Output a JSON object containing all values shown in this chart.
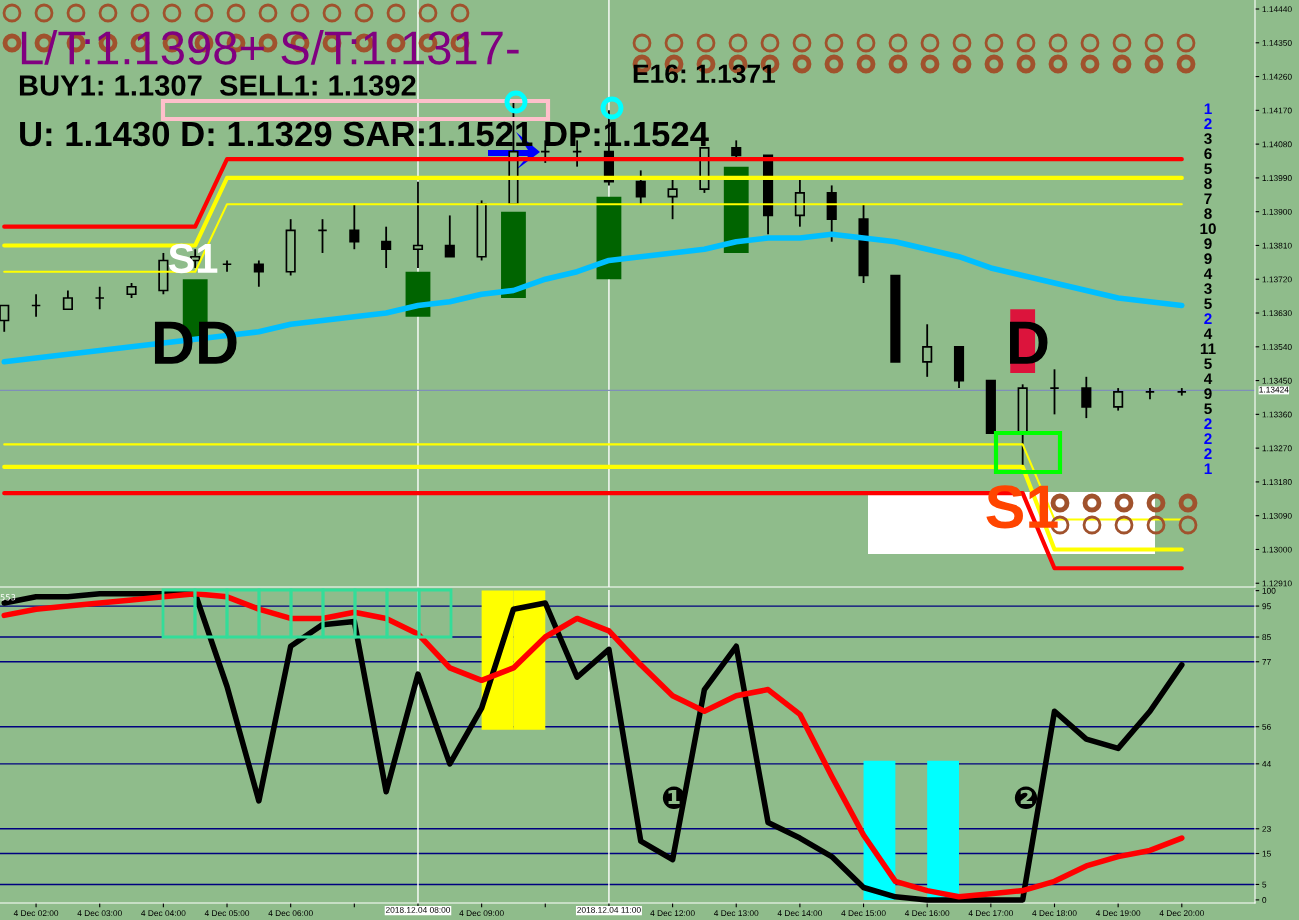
{
  "chart_data": [
    {
      "type": "candlestick",
      "color": "#000000",
      "x": [
        "2018-12-04T01:30",
        "2018-12-04T02:00",
        "2018-12-04T02:30",
        "2018-12-04T03:00",
        "2018-12-04T03:30",
        "2018-12-04T04:00",
        "2018-12-04T04:30",
        "2018-12-04T05:00",
        "2018-12-04T05:30",
        "2018-12-04T06:00",
        "2018-12-04T06:30",
        "2018-12-04T07:00",
        "2018-12-04T07:30",
        "2018-12-04T08:00",
        "2018-12-04T08:30",
        "2018-12-04T09:00",
        "2018-12-04T09:30",
        "2018-12-04T10:00",
        "2018-12-04T10:30",
        "2018-12-04T11:00",
        "2018-12-04T11:30",
        "2018-12-04T12:00",
        "2018-12-04T12:30",
        "2018-12-04T13:00",
        "2018-12-04T13:30",
        "2018-12-04T14:00",
        "2018-12-04T14:30",
        "2018-12-04T15:00",
        "2018-12-04T15:30",
        "2018-12-04T16:00",
        "2018-12-04T16:30",
        "2018-12-04T17:00",
        "2018-12-04T17:30",
        "2018-12-04T18:00",
        "2018-12-04T18:30",
        "2018-12-04T19:00",
        "2018-12-04T19:30",
        "2018-12-04T20:00"
      ],
      "ohlc": [
        [
          1.1361,
          1.1365,
          1.1358,
          1.1365
        ],
        [
          1.1365,
          1.1368,
          1.1362,
          1.1365
        ],
        [
          1.1364,
          1.1369,
          1.1364,
          1.1367
        ],
        [
          1.1367,
          1.137,
          1.1364,
          1.1367
        ],
        [
          1.1368,
          1.1371,
          1.1367,
          1.137
        ],
        [
          1.1369,
          1.1379,
          1.1368,
          1.1377
        ],
        [
          1.1377,
          1.138,
          1.1375,
          1.1378
        ],
        [
          1.1376,
          1.1377,
          1.1374,
          1.1376
        ],
        [
          1.1376,
          1.1377,
          1.137,
          1.1374
        ],
        [
          1.1374,
          1.1388,
          1.1373,
          1.1385
        ],
        [
          1.1385,
          1.1388,
          1.1379,
          1.1385
        ],
        [
          1.1385,
          1.1392,
          1.138,
          1.1382
        ],
        [
          1.1382,
          1.1386,
          1.1375,
          1.138
        ],
        [
          1.138,
          1.1398,
          1.1375,
          1.1381
        ],
        [
          1.1381,
          1.1389,
          1.1378,
          1.1378
        ],
        [
          1.1378,
          1.1393,
          1.1377,
          1.1392
        ],
        [
          1.1392,
          1.1419,
          1.1392,
          1.1406
        ],
        [
          1.1406,
          1.1409,
          1.1403,
          1.1406
        ],
        [
          1.1406,
          1.1409,
          1.1402,
          1.1406
        ],
        [
          1.1406,
          1.1417,
          1.1397,
          1.1398
        ],
        [
          1.1398,
          1.1401,
          1.1392,
          1.1394
        ],
        [
          1.1394,
          1.1399,
          1.1388,
          1.1396
        ],
        [
          1.1396,
          1.1407,
          1.1395,
          1.1407
        ],
        [
          1.1407,
          1.1409,
          1.1404,
          1.1405
        ],
        [
          1.1405,
          1.1405,
          1.1384,
          1.1389
        ],
        [
          1.1389,
          1.1399,
          1.1386,
          1.1395
        ],
        [
          1.1395,
          1.1397,
          1.1382,
          1.1388
        ],
        [
          1.1388,
          1.1392,
          1.1371,
          1.1373
        ],
        [
          1.1373,
          1.1373,
          1.135,
          1.135
        ],
        [
          1.135,
          1.136,
          1.1346,
          1.1354
        ],
        [
          1.1354,
          1.1354,
          1.1343,
          1.1345
        ],
        [
          1.1345,
          1.1345,
          1.1331,
          1.1331
        ],
        [
          1.1331,
          1.1344,
          1.1322,
          1.1343
        ],
        [
          1.1343,
          1.1348,
          1.1336,
          1.1343
        ],
        [
          1.1343,
          1.1346,
          1.1335,
          1.1338
        ],
        [
          1.1338,
          1.1343,
          1.1337,
          1.1342
        ],
        [
          1.1342,
          1.1343,
          1.134,
          1.1342
        ],
        [
          1.1342,
          1.1343,
          1.1341,
          1.1342
        ]
      ],
      "series": [
        {
          "type": "line",
          "color": "#ff0000",
          "values": [
            1.1386,
            1.1386,
            1.1386,
            1.1386,
            1.1386,
            1.1386,
            1.1386,
            1.1404,
            1.1404,
            1.1404,
            1.1404,
            1.1404,
            1.1404,
            1.1404,
            1.1404,
            1.1404,
            1.1404,
            1.1404,
            1.1404,
            1.1404,
            1.1404,
            1.1404,
            1.1404,
            1.1404,
            1.1404,
            1.1404,
            1.1404,
            1.1404,
            1.1404,
            1.1404,
            1.1404,
            1.1404,
            1.1404,
            1.1404,
            1.1404,
            1.1404,
            1.1404,
            1.1404
          ]
        },
        {
          "type": "line",
          "color": "#ffff00",
          "values": [
            1.1381,
            1.1381,
            1.1381,
            1.1381,
            1.1381,
            1.1381,
            1.1381,
            1.1399,
            1.1399,
            1.1399,
            1.1399,
            1.1399,
            1.1399,
            1.1399,
            1.1399,
            1.1399,
            1.1399,
            1.1399,
            1.1399,
            1.1399,
            1.1399,
            1.1399,
            1.1399,
            1.1399,
            1.1399,
            1.1399,
            1.1399,
            1.1399,
            1.1399,
            1.1399,
            1.1399,
            1.1399,
            1.1399,
            1.1399,
            1.1399,
            1.1399,
            1.1399,
            1.1399
          ]
        },
        {
          "type": "line",
          "color": "#ffff00",
          "values": [
            1.1374,
            1.1374,
            1.1374,
            1.1374,
            1.1374,
            1.1374,
            1.1374,
            1.1392,
            1.1392,
            1.1392,
            1.1392,
            1.1392,
            1.1392,
            1.1392,
            1.1392,
            1.1392,
            1.1392,
            1.1392,
            1.1392,
            1.1392,
            1.1392,
            1.1392,
            1.1392,
            1.1392,
            1.1392,
            1.1392,
            1.1392,
            1.1392,
            1.1392,
            1.1392,
            1.1392,
            1.1392,
            1.1392,
            1.1392,
            1.1392,
            1.1392,
            1.1392,
            1.1392
          ]
        },
        {
          "type": "line",
          "color": "#ffff00",
          "values": [
            1.1328,
            1.1328,
            1.1328,
            1.1328,
            1.1328,
            1.1328,
            1.1328,
            1.1328,
            1.1328,
            1.1328,
            1.1328,
            1.1328,
            1.1328,
            1.1328,
            1.1328,
            1.1328,
            1.1328,
            1.1328,
            1.1328,
            1.1328,
            1.1328,
            1.1328,
            1.1328,
            1.1328,
            1.1328,
            1.1328,
            1.1328,
            1.1328,
            1.1328,
            1.1328,
            1.1328,
            1.1328,
            1.1328,
            1.1308,
            1.1308,
            1.1308,
            1.1308,
            1.1308
          ]
        },
        {
          "type": "line",
          "color": "#ffff00",
          "values": [
            1.1322,
            1.1322,
            1.1322,
            1.1322,
            1.1322,
            1.1322,
            1.1322,
            1.1322,
            1.1322,
            1.1322,
            1.1322,
            1.1322,
            1.1322,
            1.1322,
            1.1322,
            1.1322,
            1.1322,
            1.1322,
            1.1322,
            1.1322,
            1.1322,
            1.1322,
            1.1322,
            1.1322,
            1.1322,
            1.1322,
            1.1322,
            1.1322,
            1.1322,
            1.1322,
            1.1322,
            1.1322,
            1.1322,
            1.13,
            1.13,
            1.13,
            1.13,
            1.13
          ]
        },
        {
          "type": "line",
          "color": "#ff0000",
          "values": [
            1.1315,
            1.1315,
            1.1315,
            1.1315,
            1.1315,
            1.1315,
            1.1315,
            1.1315,
            1.1315,
            1.1315,
            1.1315,
            1.1315,
            1.1315,
            1.1315,
            1.1315,
            1.1315,
            1.1315,
            1.1315,
            1.1315,
            1.1315,
            1.1315,
            1.1315,
            1.1315,
            1.1315,
            1.1315,
            1.1315,
            1.1315,
            1.1315,
            1.1315,
            1.1315,
            1.1315,
            1.1315,
            1.1315,
            1.1295,
            1.1295,
            1.1295,
            1.1295,
            1.1295
          ]
        },
        {
          "type": "line",
          "color": "#00bfff",
          "values": [
            1.135,
            1.1351,
            1.1352,
            1.1353,
            1.1354,
            1.1355,
            1.1356,
            1.1357,
            1.1358,
            1.136,
            1.1361,
            1.1362,
            1.1363,
            1.1365,
            1.1366,
            1.1368,
            1.1369,
            1.1372,
            1.1374,
            1.1377,
            1.1378,
            1.1379,
            1.138,
            1.1382,
            1.1383,
            1.1383,
            1.1384,
            1.1383,
            1.1382,
            1.138,
            1.1378,
            1.1375,
            1.1373,
            1.1371,
            1.1369,
            1.1367,
            1.1366,
            1.1365
          ]
        },
        {
          "type": "bar",
          "color": "#006400",
          "x": [
            "2018-12-04T04:30",
            "2018-12-04T08:00",
            "2018-12-04T09:30",
            "2018-12-04T11:00",
            "2018-12-04T13:00"
          ],
          "base": [
            1.1356,
            1.1362,
            1.1367,
            1.1372,
            1.1379
          ],
          "values": [
            0.0016,
            0.0012,
            0.0023,
            0.0022,
            0.0023
          ]
        },
        {
          "type": "bar",
          "color": "#dc143c",
          "x": [
            "2018-12-04T17:30"
          ],
          "base": [
            1.1347
          ],
          "values": [
            0.0017
          ]
        }
      ],
      "xlim": [
        "2018-12-04T01:26",
        "2018-12-04T21:09"
      ],
      "ylim": [
        1.129,
        1.14464
      ],
      "yticks": [
        {
          "value": 1.1291,
          "label": "1.12910"
        },
        {
          "value": 1.13,
          "label": "1.13000"
        },
        {
          "value": 1.1309,
          "label": "1.13090"
        },
        {
          "value": 1.1318,
          "label": "1.13180"
        },
        {
          "value": 1.1327,
          "label": "1.13270"
        },
        {
          "value": 1.1336,
          "label": "1.13360"
        },
        {
          "value": 1.1345,
          "label": "1.13450"
        },
        {
          "value": 1.1354,
          "label": "1.13540"
        },
        {
          "value": 1.1363,
          "label": "1.13630"
        },
        {
          "value": 1.1372,
          "label": "1.13720"
        },
        {
          "value": 1.1381,
          "label": "1.13810"
        },
        {
          "value": 1.139,
          "label": "1.13900"
        },
        {
          "value": 1.1399,
          "label": "1.13990"
        },
        {
          "value": 1.1408,
          "label": "1.14080"
        },
        {
          "value": 1.1417,
          "label": "1.14170"
        },
        {
          "value": 1.1426,
          "label": "1.14260"
        },
        {
          "value": 1.1435,
          "label": "1.14350"
        },
        {
          "value": 1.1444,
          "label": "1.14440"
        }
      ],
      "tick_labels": "y",
      "ref_lines": [
        {
          "axis": "x",
          "value": "2018-12-04T08:00",
          "color": "#ffffff"
        },
        {
          "axis": "x",
          "value": "2018-12-04T11:00",
          "color": "#ffffff"
        },
        {
          "axis": "y",
          "value": 1.13424,
          "label": "1.13424",
          "color": "#7f8fb8"
        }
      ],
      "annotations": [
        "L/T:1.1398+ S/T:1.1317-",
        "BUY1: 1.1307  SELL1: 1.1392",
        "E16: 1.1371",
        "U: 1.1430 D: 1.1329 SAR:1.1521 DP:1.1524",
        "S1",
        "DD",
        "D",
        "S1",
        "1",
        "2",
        "3",
        "6",
        "5",
        "8",
        "7",
        "8",
        "10",
        "9",
        "9",
        "4",
        "3",
        "5",
        "2",
        "4",
        "11",
        "5",
        "4",
        "9",
        "5",
        "2",
        "2",
        "2",
        "1"
      ]
    },
    {
      "type": "line",
      "x": [
        "2018-12-04T01:30",
        "2018-12-04T02:00",
        "2018-12-04T02:30",
        "2018-12-04T03:00",
        "2018-12-04T03:30",
        "2018-12-04T04:00",
        "2018-12-04T04:30",
        "2018-12-04T05:00",
        "2018-12-04T05:30",
        "2018-12-04T06:00",
        "2018-12-04T06:30",
        "2018-12-04T07:00",
        "2018-12-04T07:30",
        "2018-12-04T08:00",
        "2018-12-04T08:30",
        "2018-12-04T09:00",
        "2018-12-04T09:30",
        "2018-12-04T10:00",
        "2018-12-04T10:30",
        "2018-12-04T11:00",
        "2018-12-04T11:30",
        "2018-12-04T12:00",
        "2018-12-04T12:30",
        "2018-12-04T13:00",
        "2018-12-04T13:30",
        "2018-12-04T14:00",
        "2018-12-04T14:30",
        "2018-12-04T15:00",
        "2018-12-04T15:30",
        "2018-12-04T16:00",
        "2018-12-04T16:30",
        "2018-12-04T17:00",
        "2018-12-04T17:30",
        "2018-12-04T18:00",
        "2018-12-04T18:30",
        "2018-12-04T19:00",
        "2018-12-04T19:30",
        "2018-12-04T20:00"
      ],
      "series": [
        {
          "type": "bar",
          "color": "#ffff00",
          "x": [
            "2018-12-04T09:15",
            "2018-12-04T09:45"
          ],
          "base": [
            55,
            55
          ],
          "values": [
            45,
            45
          ]
        },
        {
          "type": "bar",
          "color": "#00ffff",
          "x": [
            "2018-12-04T15:15",
            "2018-12-04T16:15"
          ],
          "base": [
            0,
            0
          ],
          "values": [
            45,
            45
          ]
        },
        {
          "type": "line",
          "color": "#000000",
          "values": [
            96,
            98,
            98,
            99,
            99,
            99,
            99,
            69,
            32,
            82,
            89,
            90,
            35,
            73,
            44,
            62,
            94,
            96,
            72,
            81,
            19,
            13,
            68,
            82,
            25,
            20,
            14,
            4,
            1,
            0,
            0,
            0,
            0,
            61,
            52,
            49,
            61,
            76
          ]
        },
        {
          "type": "line",
          "color": "#ff0000",
          "values": [
            92,
            94,
            95,
            96,
            97,
            98,
            99,
            98,
            94,
            91,
            91,
            93,
            91,
            86,
            75,
            71,
            75,
            85,
            91,
            87,
            76,
            66,
            61,
            66,
            68,
            60,
            40,
            21,
            6,
            3,
            1,
            2,
            3,
            6,
            11,
            14,
            16,
            20
          ]
        }
      ],
      "xlim": [
        "2018-12-04T01:26",
        "2018-12-04T21:09"
      ],
      "xticks": [
        {
          "value": "2018-12-04T02:00",
          "label": "4 Dec 02:00"
        },
        {
          "value": "2018-12-04T03:00",
          "label": "4 Dec 03:00"
        },
        {
          "value": "2018-12-04T04:00",
          "label": "4 Dec 04:00"
        },
        {
          "value": "2018-12-04T05:00",
          "label": "4 Dec 05:00"
        },
        {
          "value": "2018-12-04T06:00",
          "label": "4 Dec 06:00"
        },
        {
          "value": "2018-12-04T07:00",
          "label": null
        },
        {
          "value": "2018-12-04T08:00",
          "label": null
        },
        {
          "value": "2018-12-04T09:00",
          "label": "4 Dec 09:00"
        },
        {
          "value": "2018-12-04T10:00",
          "label": null
        },
        {
          "value": "2018-12-04T11:00",
          "label": null
        },
        {
          "value": "2018-12-04T12:00",
          "label": "4 Dec 12:00"
        },
        {
          "value": "2018-12-04T13:00",
          "label": "4 Dec 13:00"
        },
        {
          "value": "2018-12-04T14:00",
          "label": "4 Dec 14:00"
        },
        {
          "value": "2018-12-04T15:00",
          "label": "4 Dec 15:00"
        },
        {
          "value": "2018-12-04T16:00",
          "label": "4 Dec 16:00"
        },
        {
          "value": "2018-12-04T17:00",
          "label": "4 Dec 17:00"
        },
        {
          "value": "2018-12-04T18:00",
          "label": "4 Dec 18:00"
        },
        {
          "value": "2018-12-04T19:00",
          "label": "4 Dec 19:00"
        },
        {
          "value": "2018-12-04T20:00",
          "label": "4 Dec 20:00"
        }
      ],
      "ylim": [
        -1,
        100.2
      ],
      "yticks": [
        0,
        5,
        15,
        23,
        44,
        56,
        77,
        85,
        95,
        100
      ],
      "ref_lines": [
        {
          "axis": "y",
          "value": 5,
          "color": "#000080"
        },
        {
          "axis": "y",
          "value": 15,
          "color": "#000080"
        },
        {
          "axis": "y",
          "value": 23,
          "color": "#000080"
        },
        {
          "axis": "y",
          "value": 44,
          "color": "#000080"
        },
        {
          "axis": "y",
          "value": 56,
          "color": "#000080"
        },
        {
          "axis": "y",
          "value": 77,
          "color": "#000080"
        },
        {
          "axis": "y",
          "value": 85,
          "color": "#000080"
        },
        {
          "axis": "y",
          "value": 95,
          "color": "#000080"
        },
        {
          "axis": "x",
          "value": "2018-12-04T08:00",
          "label": "2018.12.04 08:00",
          "color": "#ffffff"
        },
        {
          "axis": "x",
          "value": "2018-12-04T11:00",
          "label": "2018.12.04 11:00",
          "color": "#ffffff"
        }
      ],
      "annotations": [
        "553",
        "❶",
        "❷"
      ]
    }
  ]
}
